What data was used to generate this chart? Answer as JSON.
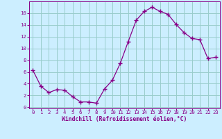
{
  "x": [
    0,
    1,
    2,
    3,
    4,
    5,
    6,
    7,
    8,
    9,
    10,
    11,
    12,
    13,
    14,
    15,
    16,
    17,
    18,
    19,
    20,
    21,
    22,
    23
  ],
  "y": [
    6.3,
    3.6,
    2.5,
    3.0,
    2.9,
    1.8,
    0.9,
    0.9,
    0.7,
    3.1,
    4.6,
    7.5,
    11.2,
    14.8,
    16.3,
    17.0,
    16.3,
    15.8,
    14.1,
    12.7,
    11.7,
    11.5,
    8.3,
    8.5
  ],
  "line_color": "#880088",
  "marker": "+",
  "marker_size": 4,
  "bg_color": "#cceeff",
  "grid_color": "#99cccc",
  "xlabel": "Windchill (Refroidissement éolien,°C)",
  "xlabel_color": "#880088",
  "tick_color": "#880088",
  "spine_color": "#880088",
  "ylim": [
    -0.2,
    18
  ],
  "xlim": [
    -0.5,
    23.5
  ],
  "yticks": [
    0,
    2,
    4,
    6,
    8,
    10,
    12,
    14,
    16
  ],
  "xticks": [
    0,
    1,
    2,
    3,
    4,
    5,
    6,
    7,
    8,
    9,
    10,
    11,
    12,
    13,
    14,
    15,
    16,
    17,
    18,
    19,
    20,
    21,
    22,
    23
  ],
  "xlabel_fontsize": 5.8,
  "tick_fontsize": 5.2
}
